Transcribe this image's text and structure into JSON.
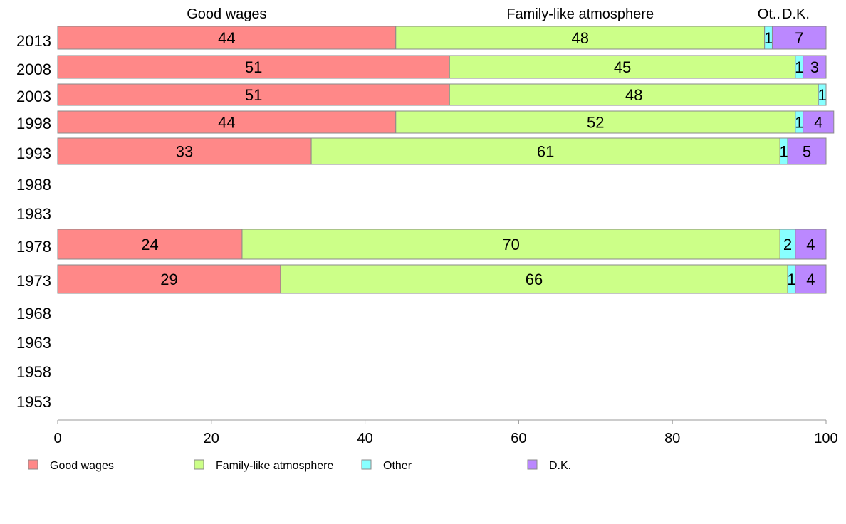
{
  "chart_data": {
    "type": "bar",
    "orientation": "horizontal",
    "stacked": true,
    "categories": [
      "2013",
      "2008",
      "2003",
      "1998",
      "1993",
      "1988",
      "1983",
      "1978",
      "1973",
      "1968",
      "1963",
      "1958",
      "1953"
    ],
    "series": [
      {
        "name": "Good wages",
        "color": "#ff8888",
        "values": [
          44,
          51,
          51,
          44,
          33,
          null,
          null,
          24,
          29,
          null,
          null,
          null,
          null
        ]
      },
      {
        "name": "Family-like atmosphere",
        "color": "#ccff88",
        "values": [
          48,
          45,
          48,
          52,
          61,
          null,
          null,
          70,
          66,
          null,
          null,
          null,
          null
        ]
      },
      {
        "name": "Other",
        "color": "#88ffff",
        "values": [
          1,
          1,
          1,
          1,
          1,
          null,
          null,
          2,
          1,
          null,
          null,
          null,
          null
        ]
      },
      {
        "name": "D.K.",
        "color": "#bb88ff",
        "values": [
          7,
          3,
          0,
          4,
          5,
          null,
          null,
          4,
          4,
          null,
          null,
          null,
          null
        ]
      }
    ],
    "top_labels": [
      "Good wages",
      "Family-like atmosphere",
      "Ot..",
      "D.K."
    ],
    "xlim": [
      0,
      100
    ],
    "xticks": [
      0,
      20,
      40,
      60,
      80,
      100
    ],
    "grid": false,
    "legend_position": "bottom"
  }
}
